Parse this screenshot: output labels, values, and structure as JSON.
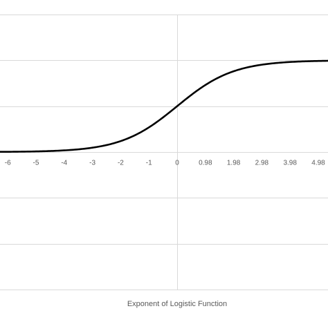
{
  "chart_data": {
    "type": "line",
    "title": "",
    "xlabel": "Exponent of Logistic Function",
    "ylabel": "",
    "x_tick_labels": [
      "-6",
      "-5",
      "-4",
      "-3",
      "-2",
      "-1",
      "0",
      "0.98",
      "1.98",
      "2.98",
      "3.98",
      "4.98"
    ],
    "xlim": [
      -6.4,
      5.4
    ],
    "ylim": [
      -1.5,
      1.5
    ],
    "y_gridlines": [
      1.5,
      1.0,
      0.5,
      0,
      -0.5,
      -1.0,
      -1.5
    ],
    "grid": "horizontal",
    "legend": "none",
    "series": [
      {
        "name": "",
        "x": [
          -6,
          -5.5,
          -5,
          -4.5,
          -4,
          -3.5,
          -3,
          -2.5,
          -2,
          -1.5,
          -1,
          -0.5,
          0,
          0.5,
          1,
          1.5,
          2,
          2.5,
          3,
          3.5,
          4,
          4.5,
          5,
          5.4
        ],
        "values": [
          0.0025,
          0.0041,
          0.0067,
          0.011,
          0.018,
          0.0293,
          0.0474,
          0.0759,
          0.1192,
          0.1824,
          0.2689,
          0.3775,
          0.5,
          0.6225,
          0.7311,
          0.8176,
          0.8808,
          0.9241,
          0.9526,
          0.9707,
          0.982,
          0.989,
          0.9933,
          0.9955
        ],
        "color": "#000000"
      }
    ]
  }
}
